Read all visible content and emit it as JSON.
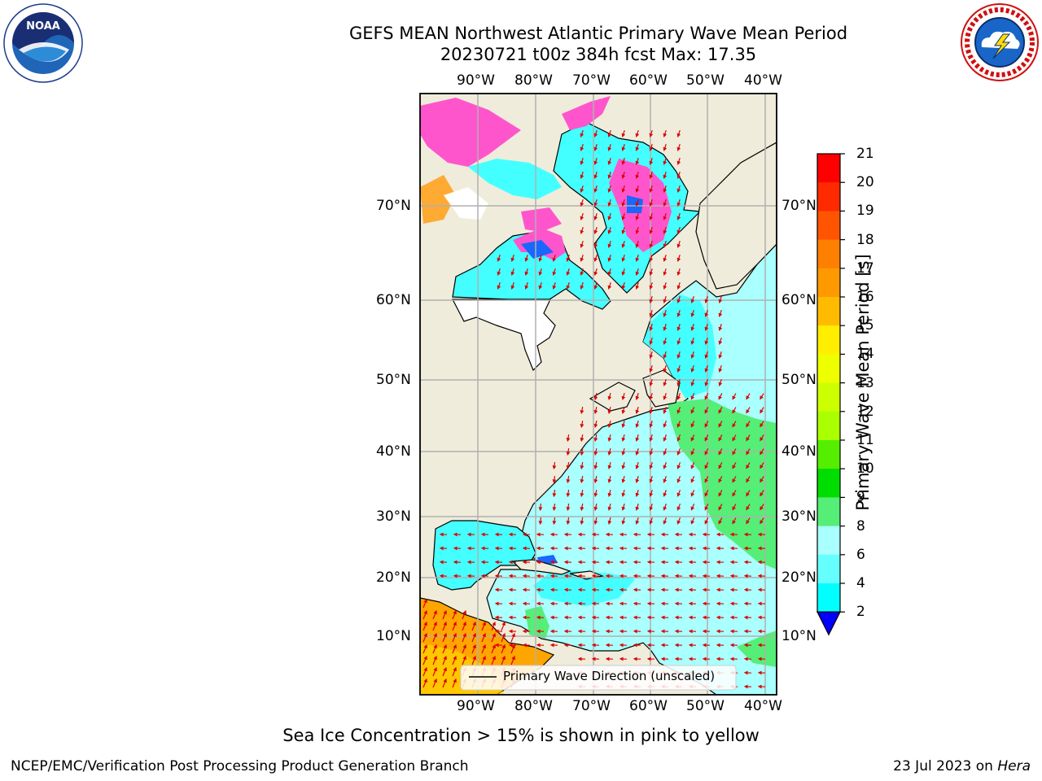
{
  "header": {
    "title": "GEFS MEAN Northwest Atlantic Primary Wave Mean Period",
    "subtitle": "20230721 t00z 384h fcst   Max: 17.35"
  },
  "map": {
    "lon_ticks_top": [
      "90°W",
      "80°W",
      "70°W",
      "60°W",
      "50°W",
      "40°W"
    ],
    "lon_ticks_bottom": [
      "90°W",
      "80°W",
      "70°W",
      "60°W",
      "50°W",
      "40°W"
    ],
    "lat_ticks_left": [
      "70°N",
      "60°N",
      "50°N",
      "40°N",
      "30°N",
      "20°N",
      "10°N"
    ],
    "lat_ticks_right": [
      "70°N",
      "60°N",
      "50°N",
      "40°N",
      "30°N",
      "20°N",
      "10°N"
    ],
    "legend_label": "Primary Wave Direction (unscaled)",
    "colors": {
      "land": "#efecdb",
      "ocean_main": "#aaffff",
      "ocean_cyan": "#44ffff",
      "ocean_green": "#55ee77",
      "tropical_land": "#ffa500",
      "ice_pink": "#ff55cc",
      "arrow": "#dd0000",
      "grid": "#b0b0b0"
    }
  },
  "colorbar": {
    "title": "Primary Wave Mean Period [s]",
    "ticks": [
      "21",
      "20",
      "19",
      "18",
      "17",
      "16",
      "15",
      "14",
      "13",
      "12",
      "11",
      "10",
      "9",
      "8",
      "6",
      "4",
      "2"
    ],
    "colors": [
      "#ff0000",
      "#ff2a00",
      "#ff5500",
      "#ff7f00",
      "#ff9900",
      "#ffbb00",
      "#ffee00",
      "#eeff00",
      "#ccff00",
      "#aaff00",
      "#55ee00",
      "#00dd00",
      "#55ee77",
      "#aaffff",
      "#66ffff",
      "#00ffff",
      "#0088ff",
      "#0000ff"
    ]
  },
  "footer": {
    "note": "Sea Ice Concentration > 15% is shown in pink to yellow",
    "credit": "NCEP/EMC/Verification Post Processing Product Generation Branch",
    "date_prefix": "23 Jul 2023 on ",
    "machine": "Hera"
  },
  "logos": {
    "left": "noaa-logo",
    "right": "nws-logo"
  }
}
